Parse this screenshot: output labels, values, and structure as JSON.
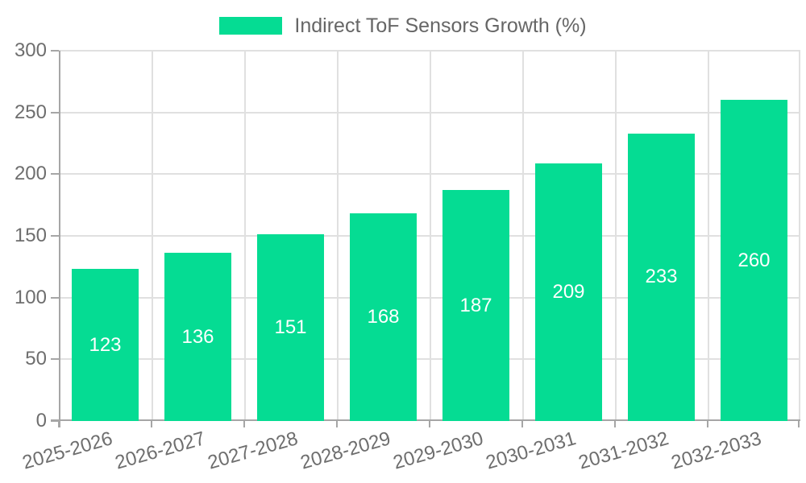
{
  "chart_data": {
    "type": "bar",
    "legend": "Indirect ToF Sensors Growth (%)",
    "legend_position": "top",
    "categories": [
      "2025-2026",
      "2026-2027",
      "2027-2028",
      "2028-2029",
      "2029-2030",
      "2030-2031",
      "2031-2032",
      "2032-2033"
    ],
    "series": [
      {
        "name": "Indirect ToF Sensors Growth (%)",
        "values": [
          123,
          136,
          151,
          168,
          187,
          209,
          233,
          260
        ],
        "value_labels": [
          "123",
          "136",
          "151",
          "168",
          "187",
          "209",
          "233",
          "260"
        ]
      }
    ],
    "xlabel": "",
    "ylabel": "",
    "ylim": [
      0,
      300
    ],
    "yticks": [
      0,
      50,
      100,
      150,
      200,
      250,
      300
    ],
    "grid": true,
    "x_label_rotation_deg": -16,
    "colors": {
      "bar": "#05dc93",
      "value_label": "#ffffff",
      "grid": "#e0e0e0",
      "axis": "#a6a6a6",
      "tick_label": "#6e6e6e",
      "legend_text": "#666666"
    }
  }
}
